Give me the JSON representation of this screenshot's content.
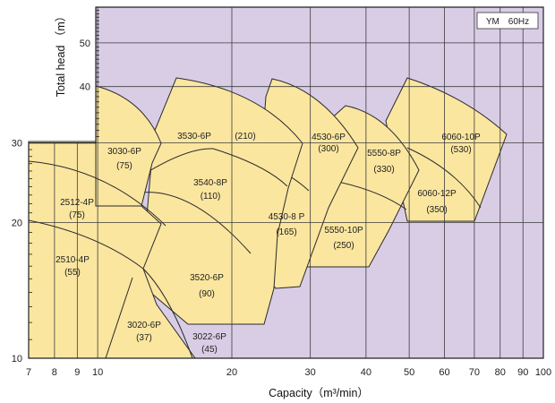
{
  "chart_data": {
    "type": "area",
    "title": "",
    "xlabel": "Capacity（m³/min）",
    "ylabel": "Total head （m）",
    "x_scale": "log",
    "y_scale": "log",
    "xlim": [
      7,
      100
    ],
    "ylim": [
      10,
      60
    ],
    "x_ticks": [
      7,
      8,
      9,
      10,
      20,
      30,
      40,
      50,
      60,
      70,
      80,
      90,
      100
    ],
    "y_ticks_right": [
      50,
      40,
      30,
      20
    ],
    "y_ticks_left": [
      30,
      20,
      10
    ],
    "grid": true,
    "legend_box": "YM　60Hz",
    "background_color": "#d9cde6",
    "zone_color": "#fbe6a0",
    "zones": [
      {
        "model": "2510-4P",
        "power": "(55)"
      },
      {
        "model": "2512-4P",
        "power": "(75)"
      },
      {
        "model": "3020-6P",
        "power": "(37)"
      },
      {
        "model": "3022-6P",
        "power": "(45)"
      },
      {
        "model": "3030-6P",
        "power": "(75)"
      },
      {
        "model": "3520-6P",
        "power": "(90)"
      },
      {
        "model": "3540-8P",
        "power": "(110)"
      },
      {
        "model": "3530-6P",
        "power": "(210)"
      },
      {
        "model": "4530-8 P",
        "power": "(165)"
      },
      {
        "model": "4530-6P",
        "power": "(300)"
      },
      {
        "model": "5550-10P",
        "power": "(250)"
      },
      {
        "model": "5550-8P",
        "power": "(330)"
      },
      {
        "model": "6060-12P",
        "power": "(350)"
      },
      {
        "model": "6060-10P",
        "power": "(530)"
      }
    ]
  }
}
